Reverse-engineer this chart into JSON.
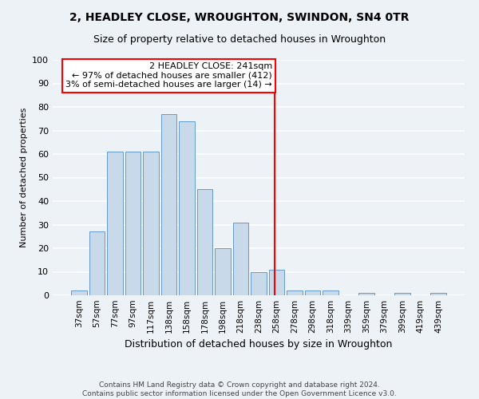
{
  "title": "2, HEADLEY CLOSE, WROUGHTON, SWINDON, SN4 0TR",
  "subtitle": "Size of property relative to detached houses in Wroughton",
  "xlabel": "Distribution of detached houses by size in Wroughton",
  "ylabel": "Number of detached properties",
  "bar_color": "#c8daea",
  "bar_edge_color": "#6699cc",
  "categories": [
    "37sqm",
    "57sqm",
    "77sqm",
    "97sqm",
    "117sqm",
    "138sqm",
    "158sqm",
    "178sqm",
    "198sqm",
    "218sqm",
    "238sqm",
    "258sqm",
    "278sqm",
    "298sqm",
    "318sqm",
    "339sqm",
    "359sqm",
    "379sqm",
    "399sqm",
    "419sqm",
    "439sqm"
  ],
  "values": [
    2,
    27,
    61,
    61,
    61,
    77,
    74,
    45,
    20,
    31,
    10,
    11,
    2,
    2,
    2,
    0,
    1,
    0,
    1,
    0,
    1
  ],
  "ylim": [
    0,
    100
  ],
  "yticks": [
    0,
    10,
    20,
    30,
    40,
    50,
    60,
    70,
    80,
    90,
    100
  ],
  "vline_x_index": 10.9,
  "annotation_title": "2 HEADLEY CLOSE: 241sqm",
  "annotation_line1": "← 97% of detached houses are smaller (412)",
  "annotation_line2": "3% of semi-detached houses are larger (14) →",
  "footer": "Contains HM Land Registry data © Crown copyright and database right 2024.\nContains public sector information licensed under the Open Government Licence v3.0.",
  "background_color": "#edf2f7",
  "grid_color": "#ffffff",
  "title_fontsize": 10,
  "subtitle_fontsize": 9,
  "ylabel_fontsize": 8,
  "xlabel_fontsize": 9,
  "tick_fontsize": 7.5,
  "footer_fontsize": 6.5,
  "annotation_fontsize": 8
}
